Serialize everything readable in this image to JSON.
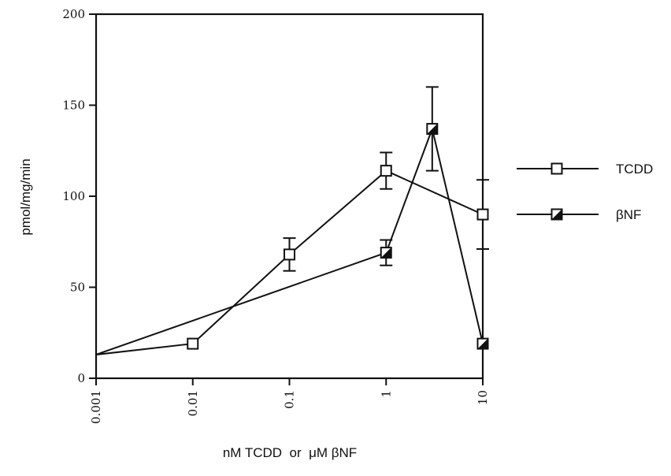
{
  "chart_data": {
    "type": "line",
    "title": "",
    "xlabel": "nM TCDD  or  μM βNF",
    "ylabel": "pmol/mg/min",
    "x_scale": "log",
    "xlim": [
      0.001,
      10
    ],
    "ylim": [
      0,
      200
    ],
    "x_ticks": [
      0.001,
      0.01,
      0.1,
      1,
      10
    ],
    "x_tick_labels": [
      "0.001",
      "0.01",
      "0.1",
      "1",
      "10"
    ],
    "y_ticks": [
      0,
      50,
      100,
      150,
      200
    ],
    "y_tick_labels": [
      "0",
      "50",
      "100",
      "150",
      "200"
    ],
    "grid": false,
    "legend_position": "right",
    "series": [
      {
        "name": "TCDD",
        "marker": "open-square",
        "points": [
          {
            "x": 0.001,
            "y": 13
          },
          {
            "x": 0.01,
            "y": 19,
            "err": 0
          },
          {
            "x": 0.1,
            "y": 68,
            "err": 9
          },
          {
            "x": 1,
            "y": 114,
            "err": 10
          },
          {
            "x": 10,
            "y": 90,
            "err": 19
          }
        ]
      },
      {
        "name": "βNF",
        "marker": "half-filled-square",
        "points": [
          {
            "x": 0.001,
            "y": 13
          },
          {
            "x": 1,
            "y": 69,
            "err": 7
          },
          {
            "x": 3,
            "y": 137,
            "err": 23
          },
          {
            "x": 10,
            "y": 19,
            "err": 0
          }
        ]
      }
    ]
  }
}
